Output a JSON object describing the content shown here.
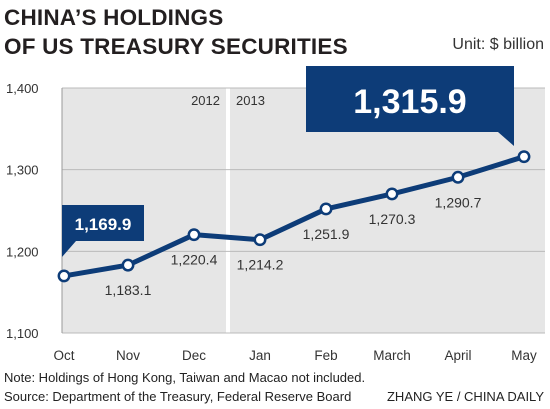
{
  "title_line1": "CHINA’S HOLDINGS",
  "title_line2": "OF US TREASURY SECURITIES",
  "unit": "Unit: $ billion",
  "note": "Note: Holdings of Hong Kong, Taiwan and Macao not included.",
  "source": "Source: Department of the Treasury, Federal Reserve Board",
  "credit": "ZHANG YE / CHINA DAILY",
  "year_labels": [
    "2012",
    "2013"
  ],
  "callouts": {
    "start": "1,169.9",
    "end": "1,315.9"
  },
  "colors": {
    "line": "#0d3c78",
    "panel": "#e6e6e6",
    "grid": "#bbbbbb"
  },
  "chart_data": {
    "type": "line",
    "categories": [
      "Oct",
      "Nov",
      "Dec",
      "Jan",
      "Feb",
      "March",
      "April",
      "May"
    ],
    "values": [
      1169.9,
      1183.1,
      1220.4,
      1214.2,
      1251.9,
      1270.3,
      1290.7,
      1315.9
    ],
    "point_labels": [
      "1,169.9",
      "1,183.1",
      "1,220.4",
      "1,214.2",
      "1,251.9",
      "1,270.3",
      "1,290.7",
      "1,315.9"
    ],
    "ylim": [
      1100,
      1400
    ],
    "yticks": [
      1100,
      1200,
      1300,
      1400
    ],
    "ytick_labels": [
      "1,100",
      "1,200",
      "1,300",
      "1,400"
    ],
    "grid": true
  }
}
